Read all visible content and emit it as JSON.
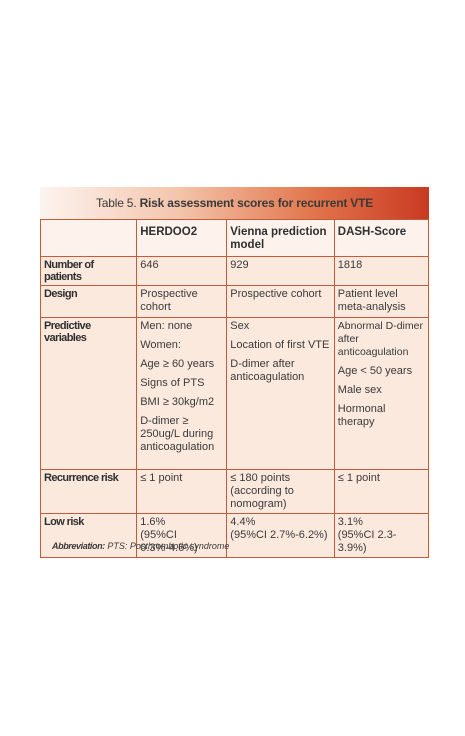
{
  "title": {
    "prefix": "Table 5.",
    "bold": "Risk assessment scores for recurrent VTE"
  },
  "headers": [
    "",
    "HERDOO2",
    "Vienna prediction model",
    "DASH-Score"
  ],
  "rows": [
    {
      "label": "Number of patients",
      "cells": [
        [
          "646"
        ],
        [
          "929"
        ],
        [
          "1818"
        ]
      ]
    },
    {
      "label": "Design",
      "cells": [
        [
          "Prospective cohort"
        ],
        [
          "Prospective cohort"
        ],
        [
          "Patient level meta-analysis"
        ]
      ]
    },
    {
      "label": "Predictive variables",
      "cells": [
        [
          "Men: none",
          "Women:",
          "Age ≥ 60 years",
          "Signs of PTS",
          "BMI ≥ 30kg/m2",
          "D-dimer ≥ 250ug/L during anticoagulation"
        ],
        [
          "Sex",
          "Location of first VTE",
          "D-dimer after anticoagulation"
        ],
        [
          "Abnormal D-dimer after anticoagulation",
          "Age < 50 years",
          "Male sex",
          "Hormonal therapy"
        ]
      ]
    },
    {
      "label": "Recurrence risk",
      "cells": [
        [
          "≤ 1 point"
        ],
        [
          "≤ 180 points (according to nomogram)"
        ],
        [
          "≤ 1 point"
        ]
      ]
    },
    {
      "label": "Low risk",
      "cells": [
        [
          "1.6%",
          "(95%CI 0.3%-4.6%)"
        ],
        [
          "4.4%",
          "(95%CI 2.7%-6.2%)"
        ],
        [
          "3.1%",
          "(95%CI 2.3-3.9%)"
        ]
      ]
    }
  ],
  "footnote": {
    "label": "Abbreviation:",
    "text": "PTS: Posthrombotic syndrome"
  },
  "colors": {
    "border": "#c85a3c",
    "cell_bg": "#fbe9de",
    "title_gradient_end": "#c83a22"
  }
}
